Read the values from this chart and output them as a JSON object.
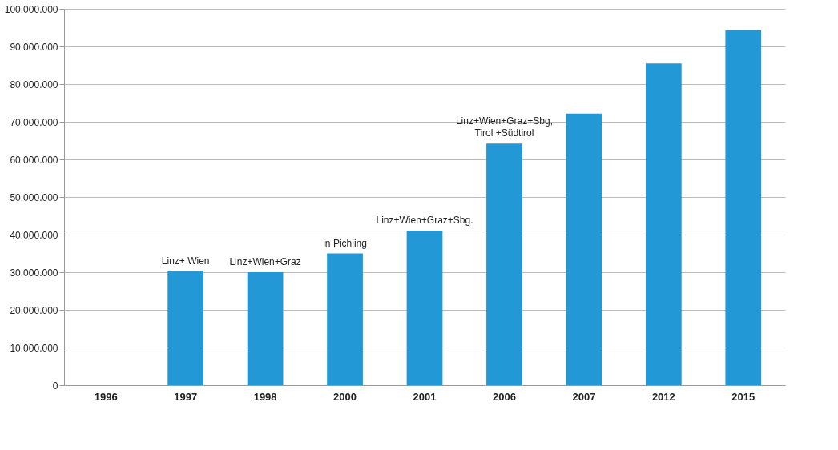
{
  "chart_data": {
    "type": "bar",
    "categories": [
      "1996",
      "1997",
      "1998",
      "2000",
      "2001",
      "2006",
      "2007",
      "2012",
      "2015"
    ],
    "values": [
      0,
      30300000,
      30000000,
      35000000,
      41000000,
      64200000,
      72200000,
      85500000,
      94300000
    ],
    "color": "#2398d6",
    "ylim": [
      0,
      100000000
    ],
    "yticks": [
      {
        "value": 0,
        "label": "0"
      },
      {
        "value": 10000000,
        "label": "10.000.000"
      },
      {
        "value": 20000000,
        "label": "20.000.000"
      },
      {
        "value": 30000000,
        "label": "30.000.000"
      },
      {
        "value": 40000000,
        "label": "40.000.000"
      },
      {
        "value": 50000000,
        "label": "50.000.000"
      },
      {
        "value": 60000000,
        "label": "60.000.000"
      },
      {
        "value": 70000000,
        "label": "70.000.000"
      },
      {
        "value": 80000000,
        "label": "80.000.000"
      },
      {
        "value": 90000000,
        "label": "90.000.000"
      },
      {
        "value": 100000000,
        "label": "100.000.000"
      }
    ],
    "grid": "y",
    "annotations": [
      {
        "text": "Linz+ Wien",
        "x": "1997",
        "y": 30300000
      },
      {
        "text": "Linz+Wien+Graz",
        "x": "1998",
        "y": 30000000
      },
      {
        "text": "in Pichling",
        "x": "2000",
        "y": 35000000
      },
      {
        "text": "Linz+Wien+Graz+Sbg.",
        "x": "2001",
        "y": 41000000
      },
      {
        "text": "Linz+Wien+Graz+Sbg,\nTirol +Südtirol",
        "x": "2006",
        "y": 64200000
      }
    ]
  }
}
